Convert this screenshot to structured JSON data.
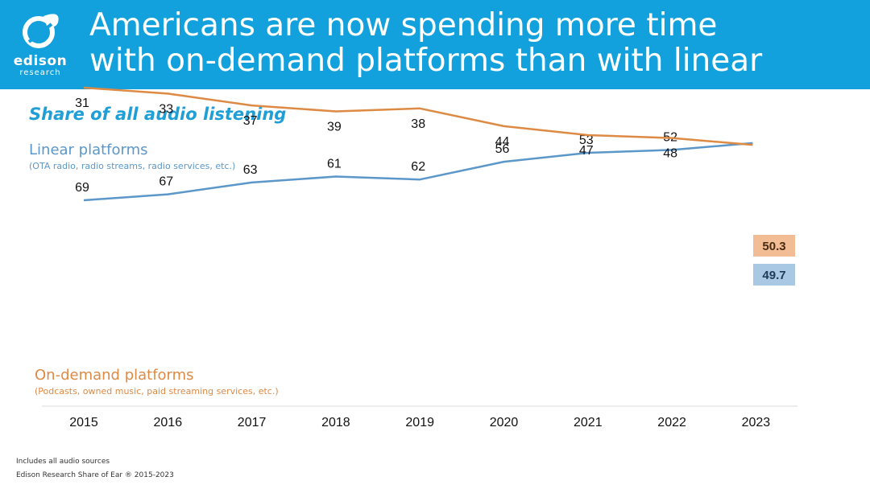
{
  "header": {
    "logo_word": "edison",
    "logo_sub": "research",
    "title_line1": "Americans are now spending more time",
    "title_line2": "with on-demand platforms than with linear",
    "brand_color": "#12a1dc"
  },
  "footer": {
    "note": "Includes all audio sources",
    "source": "Edison Research Share of Ear ® 2015-2023"
  },
  "chart_data": {
    "type": "line",
    "title": "Share of all audio listening",
    "categories": [
      "2015",
      "2016",
      "2017",
      "2018",
      "2019",
      "2020",
      "2021",
      "2022",
      "2023"
    ],
    "series": [
      {
        "name": "Linear platforms",
        "note": "(OTA radio, radio streams, radio services, etc.)",
        "color": "#5b97c9",
        "values": [
          69,
          67,
          63,
          61,
          62,
          56,
          53,
          52,
          49.7
        ],
        "labels": [
          "69",
          "67",
          "63",
          "61",
          "62",
          "56",
          "53",
          "52",
          "49.7"
        ],
        "final_label_bg": "#a8c8e4"
      },
      {
        "name": "On-demand platforms",
        "note": "(Podcasts, owned music, paid streaming services, etc.)",
        "color": "#dd8a45",
        "values": [
          31,
          33,
          37,
          39,
          38,
          44,
          47,
          48,
          50.3
        ],
        "labels": [
          "31",
          "33",
          "37",
          "39",
          "38",
          "44",
          "47",
          "48",
          "50.3"
        ],
        "final_label_bg": "#f2bc95"
      }
    ],
    "grid": false,
    "legend": "inline text labels"
  }
}
